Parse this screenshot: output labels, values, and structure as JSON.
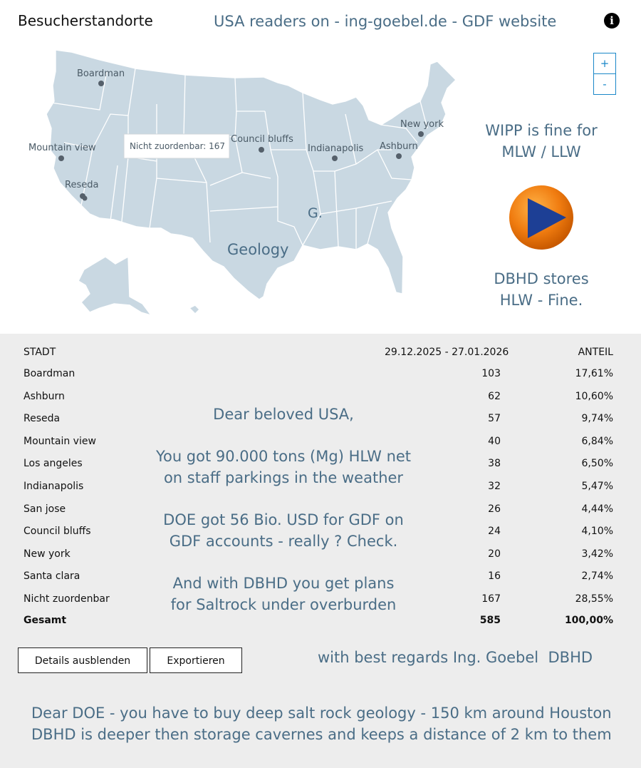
{
  "widget_title": "Besucherstandorte",
  "headline": "USA readers on - ing-goebel.de - GDF website",
  "info_icon": "i",
  "zoom": {
    "in_label": "+",
    "out_label": "-"
  },
  "map": {
    "tooltip": "Nicht zuordenbar: 167",
    "cities": {
      "boardman": "Boardman",
      "mountain_view": "Mountain view",
      "reseda": "Reseda",
      "council_bluffs": "Council bluffs",
      "indianapolis": "Indianapolis",
      "ashburn": "Ashburn",
      "new_york": "New york"
    },
    "overlay_geology": "Geology",
    "overlay_g": "G.",
    "land_color": "#c9d8e2",
    "border_color": "#ffffff"
  },
  "side": {
    "wipp": [
      "WIPP is fine for",
      "MLW / LLW"
    ],
    "dbhd": [
      "DBHD stores",
      "HLW - Fine."
    ],
    "play_icon": "play-icon"
  },
  "table": {
    "col_city": "STADT",
    "col_range": "29.12.2025 - 27.01.2026",
    "col_share": "ANTEIL",
    "rows": [
      {
        "city": "Boardman",
        "count": "103",
        "share": "17,61%"
      },
      {
        "city": "Ashburn",
        "count": "62",
        "share": "10,60%"
      },
      {
        "city": "Reseda",
        "count": "57",
        "share": "9,74%"
      },
      {
        "city": "Mountain view",
        "count": "40",
        "share": "6,84%"
      },
      {
        "city": "Los angeles",
        "count": "38",
        "share": "6,50%"
      },
      {
        "city": "Indianapolis",
        "count": "32",
        "share": "5,47%"
      },
      {
        "city": "San jose",
        "count": "26",
        "share": "4,44%"
      },
      {
        "city": "Council bluffs",
        "count": "24",
        "share": "4,10%"
      },
      {
        "city": "New york",
        "count": "20",
        "share": "3,42%"
      },
      {
        "city": "Santa clara",
        "count": "16",
        "share": "2,74%"
      },
      {
        "city": "Nicht zuordenbar",
        "count": "167",
        "share": "28,55%"
      }
    ],
    "total": {
      "city": "Gesamt",
      "count": "585",
      "share": "100,00%"
    }
  },
  "message": {
    "greeting": "Dear beloved USA,",
    "p1": [
      "You got 90.000 tons (Mg) HLW net",
      "on staff parkings in the weather"
    ],
    "p2": [
      "DOE got 56 Bio. USD for GDF on",
      "GDF accounts - really ? Check."
    ],
    "p3": [
      "And with DBHD you get plans",
      "for Saltrock under overburden"
    ]
  },
  "buttons": {
    "details": "Details ausblenden",
    "export": "Exportieren"
  },
  "regards": "with best regards Ing. Goebel  DBHD",
  "doe_note": [
    "Dear DOE - you have to buy deep salt rock geology - 150 km around Houston",
    "DBHD is deeper then storage cavernes and keeps a distance of 2 km to them"
  ],
  "colors": {
    "overlay_text": "#4a6d86",
    "zoom_accent": "#1a87c8",
    "bottom_bg": "#ededed",
    "play_orange": "#f07c10",
    "play_blue": "#1d3f95"
  }
}
